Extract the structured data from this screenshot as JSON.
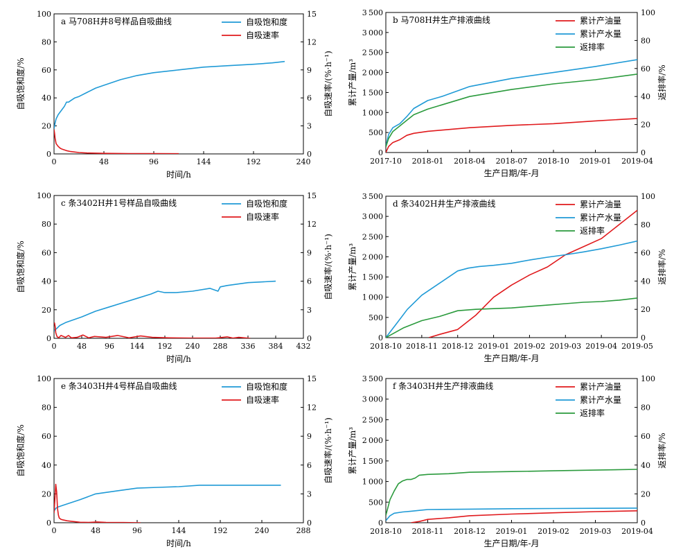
{
  "chart_data": [
    {
      "id": "a",
      "type": "line",
      "title": "a 马708H井8号样品自吸曲线",
      "xlabel": "时间/h",
      "ylabel": "自吸饱和度/%",
      "y2label": "自吸速率/(%·h⁻¹)",
      "xlim": [
        0,
        240
      ],
      "xticks": [
        0,
        48,
        96,
        144,
        192,
        240
      ],
      "ylim": [
        0,
        100
      ],
      "yticks": [
        0,
        20,
        40,
        60,
        80,
        100
      ],
      "y2lim": [
        0,
        15
      ],
      "y2ticks": [
        0,
        3,
        6,
        9,
        12,
        15
      ],
      "legend_position": "top-right",
      "series": [
        {
          "name": "自吸饱和度",
          "color": "#1f9ad6",
          "axis": "left",
          "x": [
            0,
            0.5,
            1,
            2,
            4,
            6,
            8,
            10,
            12,
            14,
            16,
            20,
            24,
            32,
            40,
            48,
            64,
            80,
            96,
            120,
            144,
            168,
            192,
            210,
            222
          ],
          "y": [
            18,
            20,
            22,
            25,
            28,
            30,
            32,
            34,
            37,
            37,
            38,
            40,
            41,
            44,
            47,
            49,
            53,
            56,
            58,
            60,
            62,
            63,
            64,
            65,
            66
          ]
        },
        {
          "name": "自吸速率",
          "color": "#e0191c",
          "axis": "right",
          "x": [
            0,
            0.5,
            1,
            2,
            4,
            6,
            8,
            12,
            16,
            24,
            32,
            48,
            72,
            96,
            120
          ],
          "y": [
            2.6,
            2.2,
            1.7,
            1.1,
            0.8,
            0.6,
            0.5,
            0.35,
            0.25,
            0.15,
            0.1,
            0.06,
            0.04,
            0.03,
            0.02
          ]
        }
      ]
    },
    {
      "id": "b",
      "type": "line",
      "title": "b 马708H井生产排液曲线",
      "xlabel": "生产日期/年-月",
      "ylabel": "累计产量/m³",
      "y2label": "返排率/%",
      "xticklabels": [
        "2017-10",
        "2018-01",
        "2018-04",
        "2018-07",
        "2018-10",
        "2019-01",
        "2019-04"
      ],
      "xlim": [
        0,
        18
      ],
      "ylim": [
        0,
        3500
      ],
      "yticks": [
        0,
        500,
        1000,
        1500,
        2000,
        2500,
        3000,
        3500
      ],
      "y2lim": [
        0,
        100
      ],
      "y2ticks": [
        0,
        20,
        40,
        60,
        80,
        100
      ],
      "legend_position": "top-right",
      "series": [
        {
          "name": "累计产油量",
          "color": "#e0191c",
          "axis": "left",
          "x": [
            0,
            0.2,
            0.5,
            1,
            1.5,
            2,
            3,
            4,
            6,
            9,
            12,
            15,
            18
          ],
          "y": [
            0,
            150,
            250,
            320,
            430,
            480,
            530,
            560,
            620,
            680,
            720,
            790,
            850
          ]
        },
        {
          "name": "累计产水量",
          "color": "#1f9ad6",
          "axis": "left",
          "x": [
            0,
            0.2,
            0.5,
            1,
            1.5,
            2,
            3,
            4,
            6,
            9,
            12,
            15,
            18
          ],
          "y": [
            150,
            450,
            620,
            720,
            900,
            1100,
            1300,
            1400,
            1650,
            1850,
            2000,
            2150,
            2320
          ]
        },
        {
          "name": "返排率",
          "color": "#2a9a3c",
          "axis": "right",
          "x": [
            0,
            0.2,
            0.5,
            1,
            1.5,
            2,
            3,
            4,
            6,
            9,
            12,
            15,
            18
          ],
          "y": [
            4,
            10,
            15,
            19,
            23,
            27,
            31,
            34,
            40,
            45,
            49,
            52,
            56
          ]
        }
      ]
    },
    {
      "id": "c",
      "type": "line",
      "title": "c 条3402H井1号样品自吸曲线",
      "xlabel": "时间/h",
      "ylabel": "自吸饱和度/%",
      "y2label": "自吸速率/(%·h⁻¹)",
      "xlim": [
        0,
        432
      ],
      "xticks": [
        0,
        48,
        96,
        144,
        192,
        240,
        288,
        336,
        384,
        432
      ],
      "ylim": [
        0,
        100
      ],
      "yticks": [
        0,
        20,
        40,
        60,
        80,
        100
      ],
      "y2lim": [
        0,
        15
      ],
      "y2ticks": [
        0,
        3,
        6,
        9,
        12,
        15
      ],
      "legend_position": "top-right",
      "series": [
        {
          "name": "自吸饱和度",
          "color": "#1f9ad6",
          "axis": "left",
          "x": [
            0,
            2,
            5,
            10,
            20,
            48,
            72,
            96,
            120,
            144,
            168,
            180,
            192,
            210,
            240,
            270,
            284,
            288,
            300,
            336,
            384
          ],
          "y": [
            5,
            6,
            7,
            9,
            11,
            15,
            19,
            22,
            25,
            28,
            31,
            33,
            32,
            32,
            33,
            35,
            33,
            36,
            37,
            39,
            40
          ]
        },
        {
          "name": "自吸速率",
          "color": "#e0191c",
          "axis": "right",
          "x": [
            0,
            1,
            2,
            3,
            5,
            8,
            12,
            20,
            25,
            30,
            40,
            50,
            60,
            70,
            90,
            110,
            130,
            150,
            170,
            200,
            240,
            280,
            300,
            310,
            320,
            340
          ],
          "y": [
            1.5,
            1.6,
            1.2,
            0.6,
            0.2,
            0.05,
            0.3,
            0.1,
            0.3,
            0.05,
            0.1,
            0.35,
            0.05,
            0.2,
            0.1,
            0.3,
            0.05,
            0.25,
            0.1,
            0.05,
            0.02,
            0.02,
            0.15,
            0.02,
            0.1,
            0.0
          ]
        }
      ]
    },
    {
      "id": "d",
      "type": "line",
      "title": "d 条3402H井生产排液曲线",
      "xlabel": "生产日期/年-月",
      "ylabel": "累计产量/m³",
      "y2label": "返排率/%",
      "xticklabels": [
        "2018-10",
        "2018-11",
        "2018-12",
        "2019-01",
        "2019-02",
        "2019-03",
        "2019-04",
        "2019-05"
      ],
      "xlim": [
        0,
        7
      ],
      "ylim": [
        0,
        3500
      ],
      "yticks": [
        0,
        500,
        1000,
        1500,
        2000,
        2500,
        3000,
        3500
      ],
      "y2lim": [
        0,
        100
      ],
      "y2ticks": [
        0,
        20,
        40,
        60,
        80,
        100
      ],
      "legend_position": "top-right",
      "series": [
        {
          "name": "累计产油量",
          "color": "#e0191c",
          "axis": "left",
          "x": [
            1.2,
            1.5,
            2,
            2.5,
            3,
            3.5,
            4,
            4.5,
            5,
            5.5,
            6,
            6.5,
            7
          ],
          "y": [
            0,
            80,
            200,
            550,
            1000,
            1300,
            1550,
            1750,
            2050,
            2250,
            2450,
            2800,
            3150
          ]
        },
        {
          "name": "累计产水量",
          "color": "#1f9ad6",
          "axis": "left",
          "x": [
            0,
            0.3,
            0.6,
            1,
            1.5,
            2,
            2.3,
            2.6,
            3,
            3.5,
            4,
            4.5,
            5,
            5.5,
            6,
            6.5,
            7
          ],
          "y": [
            0,
            350,
            700,
            1050,
            1350,
            1650,
            1720,
            1760,
            1790,
            1840,
            1920,
            1990,
            2050,
            2120,
            2200,
            2290,
            2390
          ]
        },
        {
          "name": "返排率",
          "color": "#2a9a3c",
          "axis": "right",
          "x": [
            0,
            0.5,
            1,
            1.5,
            2,
            2.5,
            3,
            3.5,
            4,
            4.5,
            5,
            5.5,
            6,
            6.5,
            7
          ],
          "y": [
            0,
            7,
            12,
            15,
            19,
            20,
            20.5,
            21,
            22,
            23,
            24,
            25,
            25.5,
            26.5,
            28
          ]
        }
      ]
    },
    {
      "id": "e",
      "type": "line",
      "title": "e 条3403H井4号样品自吸曲线",
      "xlabel": "时间/h",
      "ylabel": "自吸饱和度/%",
      "y2label": "自吸速率/(%·h⁻¹)",
      "xlim": [
        0,
        288
      ],
      "xticks": [
        0,
        48,
        96,
        144,
        192,
        240,
        288
      ],
      "ylim": [
        0,
        100
      ],
      "yticks": [
        0,
        20,
        40,
        60,
        80,
        100
      ],
      "y2lim": [
        0,
        15
      ],
      "y2ticks": [
        0,
        3,
        6,
        9,
        12,
        15
      ],
      "legend_position": "top-right",
      "series": [
        {
          "name": "自吸饱和度",
          "color": "#1f9ad6",
          "axis": "left",
          "x": [
            0,
            2,
            5,
            10,
            20,
            30,
            48,
            72,
            96,
            120,
            144,
            168,
            192,
            240,
            262
          ],
          "y": [
            8,
            10,
            11,
            12,
            14,
            16,
            20,
            22,
            24,
            24.5,
            25,
            26,
            26,
            26,
            26
          ]
        },
        {
          "name": "自吸速率",
          "color": "#e0191c",
          "axis": "right",
          "x": [
            0,
            1,
            2,
            3,
            4,
            5,
            6,
            8,
            10,
            15,
            20,
            30,
            40,
            50,
            60,
            80,
            100
          ],
          "y": [
            1.0,
            2.5,
            4.0,
            3.2,
            1.5,
            0.8,
            0.5,
            0.35,
            0.3,
            0.2,
            0.15,
            0.05,
            0.03,
            0.08,
            0.03,
            0.02,
            0.0
          ]
        }
      ]
    },
    {
      "id": "f",
      "type": "line",
      "title": "f 条3403H井生产排液曲线",
      "xlabel": "生产日期/年-月",
      "ylabel": "累计产量/m³",
      "y2label": "返排率/%",
      "xticklabels": [
        "2018-10",
        "2018-11",
        "2018-12",
        "2019-01",
        "2019-02",
        "2019-03",
        "2019-04"
      ],
      "xlim": [
        0,
        6
      ],
      "ylim": [
        0,
        3500
      ],
      "yticks": [
        0,
        500,
        1000,
        1500,
        2000,
        2500,
        3000,
        3500
      ],
      "y2lim": [
        0,
        100
      ],
      "y2ticks": [
        0,
        20,
        40,
        60,
        80,
        100
      ],
      "legend_position": "top-right",
      "series": [
        {
          "name": "累计产油量",
          "color": "#e0191c",
          "axis": "left",
          "x": [
            0.6,
            0.8,
            1,
            1.5,
            2,
            3,
            4,
            5,
            6
          ],
          "y": [
            0,
            30,
            80,
            120,
            170,
            210,
            240,
            270,
            290
          ]
        },
        {
          "name": "累计产水量",
          "color": "#1f9ad6",
          "axis": "left",
          "x": [
            0,
            0.1,
            0.2,
            0.4,
            0.6,
            0.8,
            1,
            2,
            3,
            4,
            5,
            6
          ],
          "y": [
            50,
            170,
            230,
            260,
            280,
            300,
            320,
            330,
            340,
            345,
            350,
            355
          ]
        },
        {
          "name": "返排率",
          "color": "#2a9a3c",
          "axis": "right",
          "x": [
            0,
            0.1,
            0.2,
            0.3,
            0.4,
            0.5,
            0.6,
            0.7,
            0.8,
            1,
            1.5,
            2,
            3,
            4,
            5,
            6
          ],
          "y": [
            5,
            16,
            22,
            27,
            29,
            30,
            30,
            31,
            33,
            33.5,
            34,
            35,
            35.5,
            36,
            36.5,
            37
          ]
        }
      ]
    }
  ]
}
